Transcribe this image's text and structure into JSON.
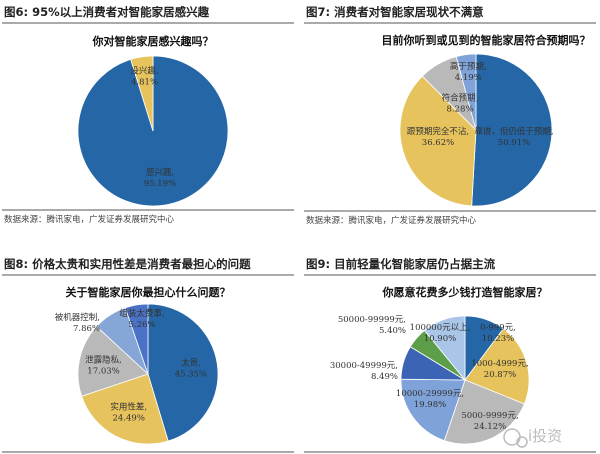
{
  "chart_data": [
    {
      "type": "pie",
      "figure": "图6:",
      "heading": "95%以上消费者对智能家居感兴趣",
      "title": "你对智能家居感兴趣吗？",
      "source": "数据来源：腾讯家电，广发证券发展研究中心",
      "slices": [
        {
          "label": "感兴趣",
          "value": 95.19,
          "color": "#2466a6"
        },
        {
          "label": "没兴趣",
          "value": 4.81,
          "color": "#e6c35c"
        }
      ]
    },
    {
      "type": "pie",
      "figure": "图7:",
      "heading": "消费者对智能家居现状不满意",
      "title": "目前你听到或见到的智能家居符合预期吗？",
      "source": "数据来源：腾讯家电，广发证券发展研究中心",
      "slices": [
        {
          "label": "靠谱，但仍低于预期",
          "value": 50.91,
          "color": "#2466a6"
        },
        {
          "label": "跟预期完全不沾",
          "value": 36.62,
          "color": "#e6c35c"
        },
        {
          "label": "符合预期",
          "value": 8.28,
          "color": "#b9b9b9"
        },
        {
          "label": "高于预期",
          "value": 4.19,
          "color": "#7fa2d8"
        }
      ]
    },
    {
      "type": "pie",
      "figure": "图8:",
      "heading": "价格太贵和实用性差是消费者最担心的问题",
      "title": "关于智能家居你最担心什么问题？",
      "source": "",
      "slices": [
        {
          "label": "太贵",
          "value": 45.35,
          "color": "#2466a6"
        },
        {
          "label": "实用性差",
          "value": 24.49,
          "color": "#e6c35c"
        },
        {
          "label": "泄露隐私",
          "value": 17.03,
          "color": "#b9b9b9"
        },
        {
          "label": "被机器控制",
          "value": 7.86,
          "color": "#86a6d8"
        },
        {
          "label": "组装太费事",
          "value": 5.26,
          "color": "#4a72c6"
        }
      ]
    },
    {
      "type": "pie",
      "figure": "图9:",
      "heading": "目前轻量化智能家居仍占据主流",
      "title": "你愿意花费多少钱打造智能家居？",
      "source": "",
      "slices": [
        {
          "label": "0-999元",
          "value": 10.23,
          "color": "#2466a6"
        },
        {
          "label": "1000-4999元",
          "value": 20.87,
          "color": "#e6c35c"
        },
        {
          "label": "5000-9999元",
          "value": 24.12,
          "color": "#b9b9b9"
        },
        {
          "label": "10000-29999元",
          "value": 19.98,
          "color": "#7fa2d8"
        },
        {
          "label": "30000-49999元",
          "value": 8.49,
          "color": "#3c64b4"
        },
        {
          "label": "50000-99999元",
          "value": 5.4,
          "color": "#5d9e48"
        },
        {
          "label": "100000元以上",
          "value": 10.9,
          "color": "#a9c5e8"
        }
      ]
    }
  ],
  "watermark": "i投资"
}
